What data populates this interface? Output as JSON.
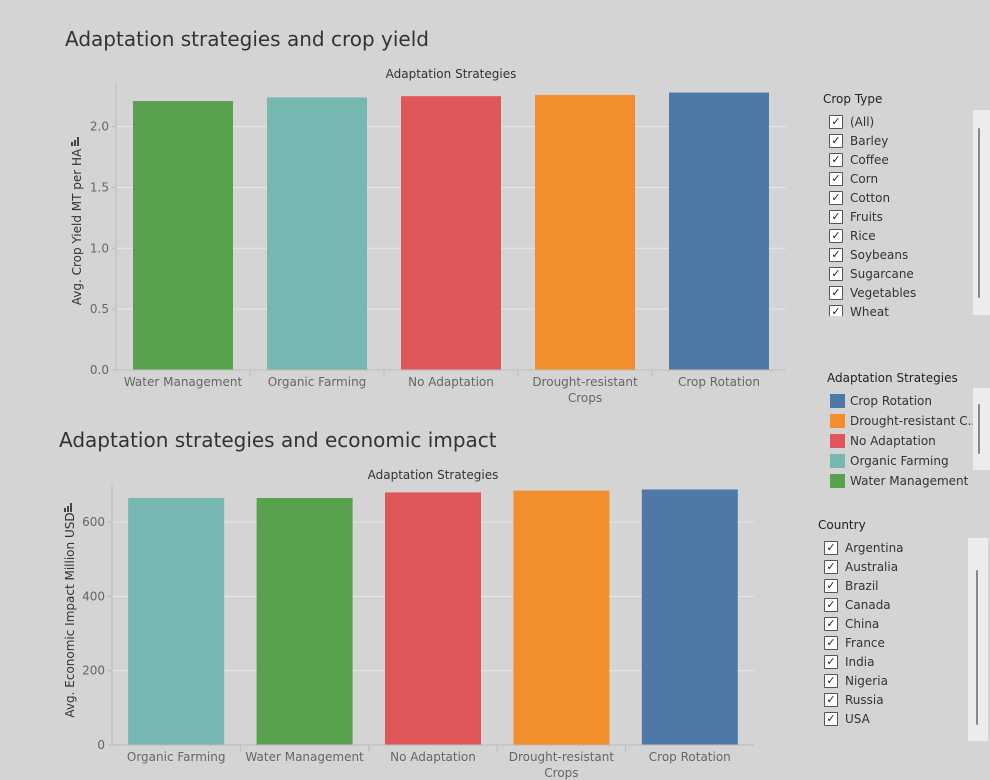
{
  "charts_header": {
    "title1": "Adaptation strategies and crop yield",
    "title2": "Adaptation strategies and economic impact"
  },
  "chart_data": [
    {
      "type": "bar",
      "title": "Adaptation strategies and crop yield",
      "column_header": "Adaptation Strategies",
      "ylabel": "Avg. Crop Yield MT per HA",
      "categories": [
        "Water Management",
        "Organic Farming",
        "No Adaptation",
        "Drought-resistant Crops",
        "Crop Rotation"
      ],
      "values": [
        2.21,
        2.24,
        2.25,
        2.26,
        2.28
      ],
      "colors": [
        "#59a14f",
        "#76b7b2",
        "#e15759",
        "#f28e2b",
        "#4e79a7"
      ],
      "ylim": [
        0,
        2.35
      ],
      "yticks": [
        "0.0",
        "0.5",
        "1.0",
        "1.5",
        "2.0"
      ],
      "ytick_values": [
        0,
        0.5,
        1.0,
        1.5,
        2.0
      ],
      "grid": true
    },
    {
      "type": "bar",
      "title": "Adaptation strategies and economic impact",
      "column_header": "Adaptation Strategies",
      "ylabel": "Avg. Economic Impact Million USD",
      "categories": [
        "Organic Farming",
        "Water Management",
        "No Adaptation",
        "Drought-resistant Crops",
        "Crop Rotation"
      ],
      "values": [
        665,
        665,
        680,
        685,
        688
      ],
      "colors": [
        "#76b7b2",
        "#59a14f",
        "#e15759",
        "#f28e2b",
        "#4e79a7"
      ],
      "ylim": [
        0,
        700
      ],
      "yticks": [
        "0",
        "200",
        "400",
        "600"
      ],
      "ytick_values": [
        0,
        200,
        400,
        600
      ],
      "grid": true
    }
  ],
  "filters": {
    "crop_type": {
      "title": "Crop Type",
      "items": [
        "(All)",
        "Barley",
        "Coffee",
        "Corn",
        "Cotton",
        "Fruits",
        "Rice",
        "Soybeans",
        "Sugarcane",
        "Vegetables",
        "Wheat"
      ]
    },
    "country": {
      "title": "Country",
      "items": [
        "Argentina",
        "Australia",
        "Brazil",
        "Canada",
        "China",
        "France",
        "India",
        "Nigeria",
        "Russia",
        "USA"
      ]
    }
  },
  "legend": {
    "title": "Adaptation Strategies",
    "items": [
      {
        "label": "Crop Rotation",
        "color": "#4e79a7"
      },
      {
        "label": "Drought-resistant C..",
        "color": "#f28e2b"
      },
      {
        "label": "No Adaptation",
        "color": "#e15759"
      },
      {
        "label": "Organic Farming",
        "color": "#76b7b2"
      },
      {
        "label": "Water Management",
        "color": "#59a14f"
      }
    ]
  },
  "checkmark": "✓"
}
